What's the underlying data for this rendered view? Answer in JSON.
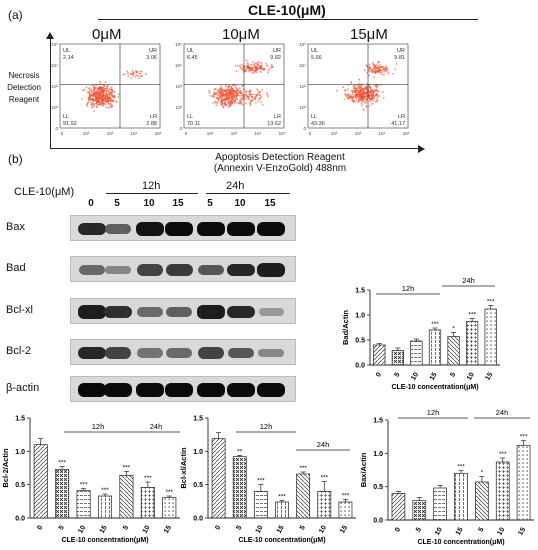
{
  "panel_a": {
    "label": "(a)",
    "header": "CLE-10(μM)",
    "doses": [
      "0μM",
      "10μM",
      "15μM"
    ],
    "y_axis_title": [
      "Necrosis",
      "Detection",
      "Reagent"
    ],
    "x_axis_title": [
      "Apoptosis Detection Reagent",
      "(Annexin V-EnzoGold) 488nm"
    ],
    "plots": [
      {
        "UL": "2.14",
        "UR": "3.06",
        "LL": "91.92",
        "LR": "2.88"
      },
      {
        "UL": "6.45",
        "UR": "9.82",
        "LL": "70.11",
        "LR": "13.62"
      },
      {
        "UL": "5.66",
        "UR": "9.81",
        "LL": "43.36",
        "LR": "41.17"
      }
    ],
    "quadrant_labels": {
      "ul": "UL",
      "ur": "UR",
      "ll": "LL",
      "lr": "LR"
    },
    "tick_labels": [
      "0",
      "10²",
      "10³",
      "10⁴",
      "10⁵"
    ]
  },
  "panel_b": {
    "label": "(b)",
    "treatment_label": "CLE-10(μM)",
    "time_labels": [
      "12h",
      "24h"
    ],
    "lane_labels": [
      "0",
      "5",
      "10",
      "15",
      "5",
      "10",
      "15"
    ],
    "proteins": [
      "Bax",
      "Bad",
      "Bcl-xl",
      "Bcl-2",
      "β-actin"
    ],
    "band_intensity": {
      "Bax": [
        0.85,
        0.55,
        0.95,
        1.0,
        1.0,
        1.0,
        1.0
      ],
      "Bad": [
        0.5,
        0.35,
        0.7,
        0.75,
        0.6,
        0.85,
        0.9
      ],
      "Bcl-xl": [
        0.9,
        0.8,
        0.5,
        0.55,
        0.9,
        0.85,
        0.25
      ],
      "Bcl-2": [
        0.85,
        0.7,
        0.45,
        0.5,
        0.7,
        0.6,
        0.35
      ],
      "β-actin": [
        1.0,
        1.0,
        1.0,
        1.0,
        1.0,
        1.0,
        1.0
      ]
    }
  },
  "chart_data": [
    {
      "type": "bar",
      "id": "bad",
      "ylabel": "Bad/Actin",
      "xlabel": "CLE-10 concentration(μM)",
      "categories": [
        "0",
        "5",
        "10",
        "15",
        "5",
        "10",
        "15"
      ],
      "values": [
        0.4,
        0.29,
        0.48,
        0.7,
        0.57,
        0.87,
        1.12
      ],
      "errors": [
        0.03,
        0.05,
        0.04,
        0.04,
        0.08,
        0.06,
        0.07
      ],
      "significance": [
        "",
        "",
        "",
        "***",
        "*",
        "***",
        "***"
      ],
      "ylim": [
        0,
        1.5
      ],
      "yticks": [
        "0.0",
        "0.5",
        "1.0",
        "1.5"
      ],
      "groups": [
        "12h",
        "24h"
      ]
    },
    {
      "type": "bar",
      "id": "bcl2",
      "ylabel": "Bcl-2/Actin",
      "xlabel": "CLE-10 concentration(μM)",
      "categories": [
        "0",
        "5",
        "10",
        "15",
        "5",
        "10",
        "15"
      ],
      "values": [
        1.1,
        0.73,
        0.41,
        0.33,
        0.64,
        0.46,
        0.31
      ],
      "errors": [
        0.09,
        0.04,
        0.03,
        0.03,
        0.06,
        0.08,
        0.02
      ],
      "significance": [
        "",
        "***",
        "***",
        "***",
        "***",
        "***",
        "***"
      ],
      "ylim": [
        0,
        1.5
      ],
      "yticks": [
        "0.0",
        "0.5",
        "1.0",
        "1.5"
      ],
      "groups": [
        "12h",
        "24h"
      ]
    },
    {
      "type": "bar",
      "id": "bclxl",
      "ylabel": "Bcl-xl/Actin",
      "xlabel": "CLE-10 concentration(μM)",
      "categories": [
        "0",
        "5",
        "10",
        "15",
        "5",
        "10",
        "15"
      ],
      "values": [
        1.19,
        0.92,
        0.4,
        0.24,
        0.66,
        0.4,
        0.24
      ],
      "errors": [
        0.09,
        0.02,
        0.1,
        0.02,
        0.03,
        0.15,
        0.04
      ],
      "significance": [
        "",
        "**",
        "***",
        "***",
        "***",
        "***",
        "***"
      ],
      "ylim": [
        0,
        1.5
      ],
      "yticks": [
        "0.0",
        "0.5",
        "1.0",
        "1.5"
      ],
      "groups": [
        "12h",
        "24h"
      ]
    },
    {
      "type": "bar",
      "id": "bax",
      "ylabel": "Bax/Actin",
      "xlabel": "CLE-10 concentration(μM)",
      "categories": [
        "0",
        "5",
        "10",
        "15",
        "5",
        "10",
        "15"
      ],
      "values": [
        0.4,
        0.29,
        0.48,
        0.7,
        0.57,
        0.87,
        1.12
      ],
      "errors": [
        0.03,
        0.05,
        0.04,
        0.04,
        0.08,
        0.06,
        0.07
      ],
      "significance": [
        "",
        "",
        "",
        "***",
        "*",
        "***",
        "***"
      ],
      "ylim": [
        0,
        1.5
      ],
      "yticks": [
        "0.0",
        "0.5",
        "1.0",
        "1.5"
      ],
      "groups": [
        "12h",
        "24h"
      ]
    }
  ]
}
